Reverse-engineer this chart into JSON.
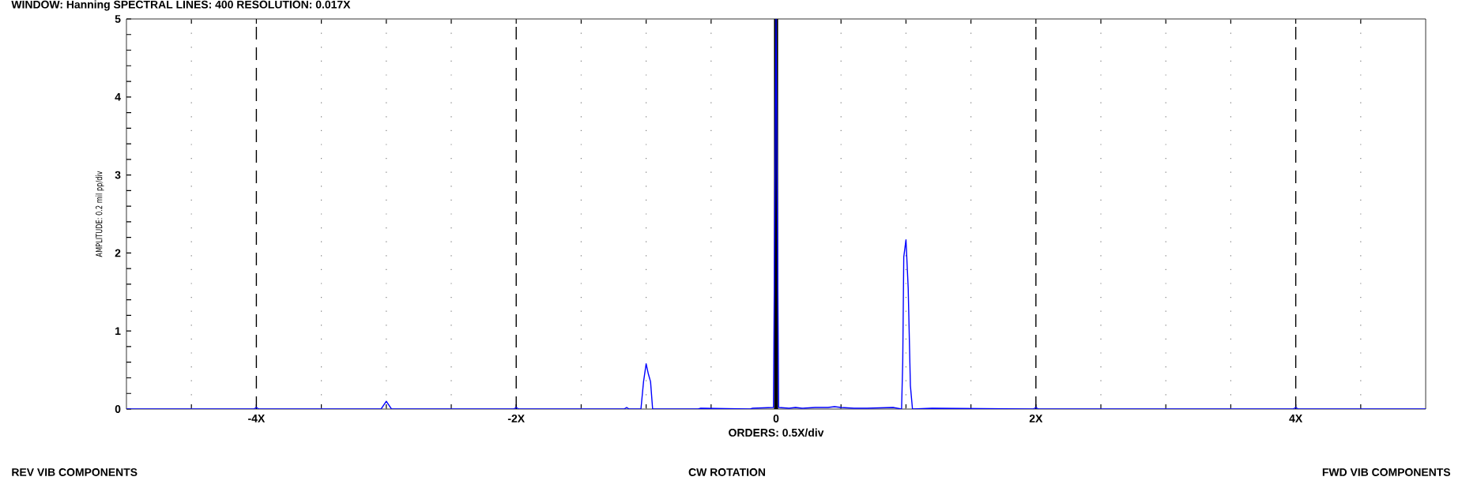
{
  "chart_data": {
    "type": "line",
    "title": "WINDOW: Hanning  SPECTRAL LINES: 400  RESOLUTION: 0.017X",
    "xlabel": "ORDERS: 0.5X/div",
    "ylabel": "AMPLITUDE: 0.2 mil pp/div",
    "annotations": [
      "REV VIB COMPONENTS",
      "CW ROTATION",
      "FWD VIB COMPONENTS"
    ],
    "xlim": [
      -5,
      5
    ],
    "ylim": [
      0,
      5
    ],
    "xticks": [
      {
        "value": -4.5,
        "label": null
      },
      {
        "value": -4,
        "label": "-4X"
      },
      {
        "value": -3.5,
        "label": null
      },
      {
        "value": -3,
        "label": null
      },
      {
        "value": -2.5,
        "label": null
      },
      {
        "value": -2,
        "label": "-2X"
      },
      {
        "value": -1.5,
        "label": null
      },
      {
        "value": -1,
        "label": null
      },
      {
        "value": -0.5,
        "label": null
      },
      0,
      {
        "value": 0.5,
        "label": null
      },
      {
        "value": 1,
        "label": null
      },
      {
        "value": 1.5,
        "label": null
      },
      {
        "value": 2,
        "label": "2X"
      },
      {
        "value": 2.5,
        "label": null
      },
      {
        "value": 3,
        "label": null
      },
      {
        "value": 3.5,
        "label": null
      },
      {
        "value": 4,
        "label": "4X"
      },
      {
        "value": 4.5,
        "label": null
      }
    ],
    "yticks": [
      0,
      {
        "value": 0.2,
        "label": null
      },
      {
        "value": 0.4,
        "label": null
      },
      {
        "value": 0.6,
        "label": null
      },
      {
        "value": 0.8,
        "label": null
      },
      1,
      {
        "value": 1.2,
        "label": null
      },
      {
        "value": 1.4,
        "label": null
      },
      {
        "value": 1.6,
        "label": null
      },
      {
        "value": 1.8,
        "label": null
      },
      2,
      {
        "value": 2.2,
        "label": null
      },
      {
        "value": 2.4,
        "label": null
      },
      {
        "value": 2.6,
        "label": null
      },
      {
        "value": 2.8,
        "label": null
      },
      3,
      {
        "value": 3.2,
        "label": null
      },
      {
        "value": 3.4,
        "label": null
      },
      {
        "value": 3.6,
        "label": null
      },
      {
        "value": 3.8,
        "label": null
      },
      4,
      {
        "value": 4.2,
        "label": null
      },
      {
        "value": 4.4,
        "label": null
      },
      {
        "value": 4.6,
        "label": null
      },
      {
        "value": 4.8,
        "label": null
      },
      5
    ],
    "grid": "x",
    "ref_lines": [
      {
        "axis": "x",
        "value": 0,
        "color": "#000000"
      }
    ],
    "series": [
      {
        "color": "#0000ff",
        "x": [
          -5,
          -4.02,
          -4,
          -3.98,
          -3.04,
          -3.0,
          -2.96,
          -2.02,
          -2,
          -1.98,
          -1.17,
          -1.15,
          -1.13,
          -1.04,
          -1.02,
          -1.0,
          -0.983,
          -0.966,
          -0.95,
          -0.6,
          -0.58,
          -0.2,
          -0.18,
          -0.02,
          0,
          0.02,
          0.1,
          0.15,
          0.2,
          0.3,
          0.4,
          0.45,
          0.5,
          0.6,
          0.7,
          0.9,
          0.966,
          0.975,
          0.983,
          1.0,
          1.017,
          1.034,
          1.05,
          1.2,
          1.98,
          2,
          2.02,
          3.98,
          4,
          4.02,
          5
        ],
        "values": [
          0,
          0,
          0.02,
          0,
          0,
          0.1,
          0,
          0,
          0.02,
          0,
          0,
          0.02,
          0,
          0,
          0.35,
          0.58,
          0.45,
          0.35,
          0,
          0,
          0.01,
          0,
          0.01,
          0.02,
          5,
          0.02,
          0.01,
          0.02,
          0.01,
          0.02,
          0.02,
          0.03,
          0.02,
          0.01,
          0.01,
          0.02,
          0,
          0.6,
          1.95,
          2.17,
          1.55,
          0.3,
          0,
          0.01,
          0,
          0.02,
          0,
          0,
          0.02,
          0,
          0
        ]
      }
    ]
  }
}
